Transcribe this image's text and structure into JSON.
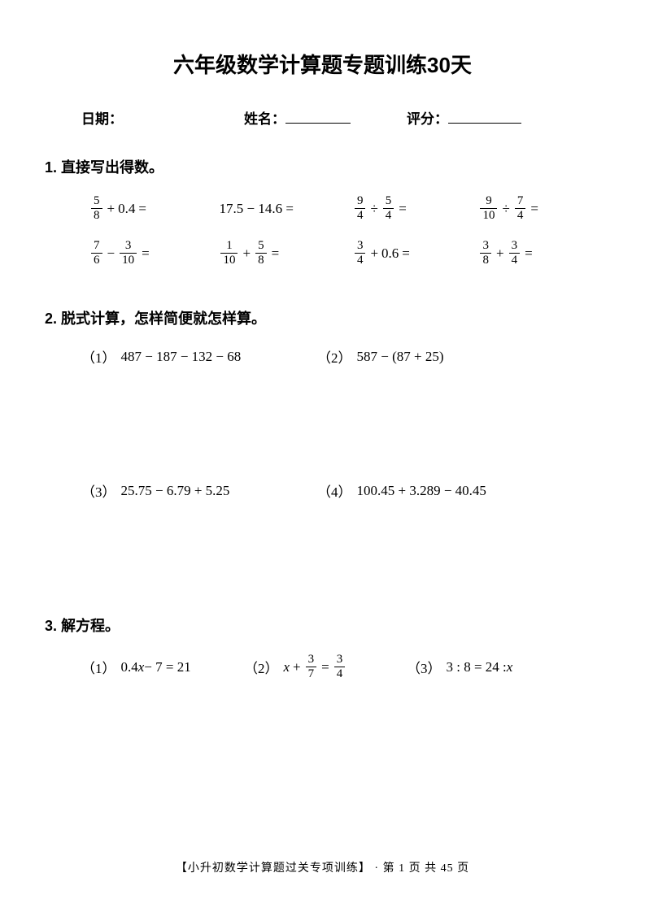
{
  "title": "六年级数学计算题专题训练30天",
  "header": {
    "date_label": "日期：",
    "name_label": "姓名：",
    "score_label": "评分："
  },
  "section1": {
    "title": "1. 直接写出得数。",
    "problems": [
      [
        {
          "type": "frac_op_num",
          "num": "5",
          "den": "8",
          "op": "+",
          "val": "0.4"
        },
        {
          "type": "plain",
          "text": "17.5 − 14.6 ="
        },
        {
          "type": "frac_op_frac",
          "n1": "9",
          "d1": "4",
          "op": "÷",
          "n2": "5",
          "d2": "4"
        },
        {
          "type": "frac_op_frac",
          "n1": "9",
          "d1": "10",
          "op": "÷",
          "n2": "7",
          "d2": "4"
        }
      ],
      [
        {
          "type": "frac_op_frac",
          "n1": "7",
          "d1": "6",
          "op": "−",
          "n2": "3",
          "d2": "10"
        },
        {
          "type": "frac_op_frac",
          "n1": "1",
          "d1": "10",
          "op": "+",
          "n2": "5",
          "d2": "8"
        },
        {
          "type": "frac_op_num",
          "num": "3",
          "den": "4",
          "op": "+",
          "val": "0.6"
        },
        {
          "type": "frac_op_frac",
          "n1": "3",
          "d1": "8",
          "op": "+",
          "n2": "3",
          "d2": "4"
        }
      ]
    ]
  },
  "section2": {
    "title": "2. 脱式计算，怎样简便就怎样算。",
    "problems": [
      {
        "num": "（1）",
        "text": "487 − 187 − 132 − 68"
      },
      {
        "num": "（2）",
        "text": "587 − (87 + 25)"
      },
      {
        "num": "（3）",
        "text": "25.75 − 6.79 + 5.25"
      },
      {
        "num": "（4）",
        "text": "100.45 + 3.289 − 40.45"
      }
    ]
  },
  "section3": {
    "title": "3. 解方程。",
    "problems": [
      {
        "num": "（1）",
        "type": "p1",
        "pre": "0.4",
        "var": "x",
        "rest": " − 7 = 21"
      },
      {
        "num": "（2）",
        "type": "p2",
        "var": "x",
        "op": "+",
        "n1": "3",
        "d1": "7",
        "eq": "=",
        "n2": "3",
        "d2": "4"
      },
      {
        "num": "（3）",
        "type": "p3",
        "text": "3 : 8 = 24 : ",
        "var": "x"
      }
    ]
  },
  "footer": "【小升初数学计算题过关专项训练】 · 第 1 页  共 45 页"
}
